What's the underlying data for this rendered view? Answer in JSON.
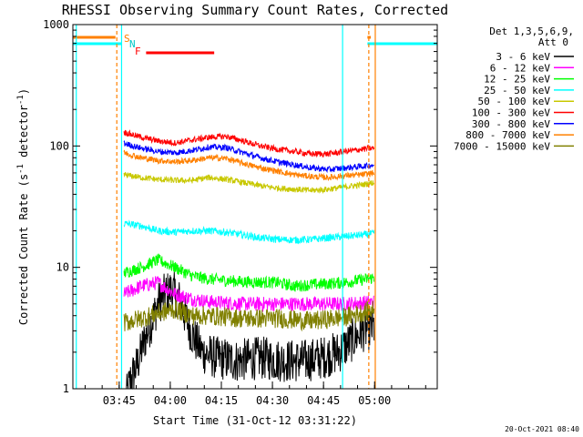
{
  "title": "RHESSI Observing Summary Count Rates, Corrected",
  "xlabel": "Start Time (31-Oct-12 03:31:22)",
  "ylabel": "Corrected Count Rate (s",
  "ylabel_sup1": "-1",
  "ylabel_mid": " detector",
  "ylabel_sup2": "-1",
  "ylabel_end": ")",
  "detector_info": {
    "line1": "Det 1,3,5,6,9,",
    "line2": "Att 0"
  },
  "flag_labels": {
    "s": "S",
    "n": "N",
    "f": "F"
  },
  "timestamp": "20-Oct-2021 08:40",
  "chart_data": {
    "type": "line",
    "xunit": "minutes since 03:31:22",
    "xlim": [
      0,
      107
    ],
    "ylim": [
      1,
      1000
    ],
    "yscale": "log",
    "x_ticks": [
      {
        "value": 13.6,
        "label": "03:45"
      },
      {
        "value": 28.6,
        "label": "04:00"
      },
      {
        "value": 43.6,
        "label": "04:15"
      },
      {
        "value": 58.6,
        "label": "04:30"
      },
      {
        "value": 73.6,
        "label": "04:45"
      },
      {
        "value": 88.6,
        "label": "05:00"
      }
    ],
    "y_ticks": [
      {
        "value": 1,
        "label": "1"
      },
      {
        "value": 10,
        "label": "10"
      },
      {
        "value": 100,
        "label": "100"
      },
      {
        "value": 1000,
        "label": "1000"
      }
    ],
    "series": [
      {
        "name": "3 - 6 keV",
        "color": "#000000",
        "noise": 0.18,
        "points": [
          [
            15.5,
            0.8
          ],
          [
            17,
            1.2
          ],
          [
            19,
            1.6
          ],
          [
            21,
            2.5
          ],
          [
            23,
            3.5
          ],
          [
            25,
            5
          ],
          [
            27,
            6
          ],
          [
            29,
            6.5
          ],
          [
            31,
            5.5
          ],
          [
            33,
            4
          ],
          [
            35,
            2.8
          ],
          [
            38,
            2
          ],
          [
            42,
            1.8
          ],
          [
            48,
            1.7
          ],
          [
            55,
            1.8
          ],
          [
            62,
            1.7
          ],
          [
            68,
            1.7
          ],
          [
            73,
            1.8
          ],
          [
            78,
            2
          ],
          [
            82,
            2.5
          ],
          [
            85,
            3
          ],
          [
            88.5,
            3.2
          ]
        ]
      },
      {
        "name": "6 - 12 keV",
        "color": "#ff00ff",
        "noise": 0.06,
        "points": [
          [
            15,
            6
          ],
          [
            20,
            7
          ],
          [
            25,
            7.5
          ],
          [
            30,
            6
          ],
          [
            35,
            5.5
          ],
          [
            40,
            5.2
          ],
          [
            50,
            5
          ],
          [
            60,
            5
          ],
          [
            70,
            5
          ],
          [
            80,
            5
          ],
          [
            88.5,
            5.2
          ]
        ]
      },
      {
        "name": "12 - 25 keV",
        "color": "#00ff00",
        "noise": 0.05,
        "points": [
          [
            15,
            9
          ],
          [
            20,
            10
          ],
          [
            25,
            11.5
          ],
          [
            30,
            10
          ],
          [
            35,
            8.5
          ],
          [
            40,
            8
          ],
          [
            50,
            7.6
          ],
          [
            60,
            7.5
          ],
          [
            65,
            7
          ],
          [
            70,
            7.2
          ],
          [
            80,
            7.5
          ],
          [
            88.5,
            8.2
          ]
        ]
      },
      {
        "name": "25 - 50 keV",
        "color": "#00ffff",
        "noise": 0.03,
        "points": [
          [
            15,
            23
          ],
          [
            20,
            22
          ],
          [
            25,
            20
          ],
          [
            30,
            19.5
          ],
          [
            35,
            20
          ],
          [
            40,
            20
          ],
          [
            45,
            19.5
          ],
          [
            50,
            18.5
          ],
          [
            55,
            17.5
          ],
          [
            60,
            17
          ],
          [
            65,
            16.8
          ],
          [
            70,
            17
          ],
          [
            75,
            17.5
          ],
          [
            80,
            18
          ],
          [
            85,
            18.5
          ],
          [
            88.5,
            19
          ]
        ]
      },
      {
        "name": "50 - 100 keV",
        "color": "#c8c800",
        "noise": 0.025,
        "points": [
          [
            15,
            58
          ],
          [
            20,
            55
          ],
          [
            25,
            53
          ],
          [
            30,
            52
          ],
          [
            35,
            52
          ],
          [
            40,
            55
          ],
          [
            45,
            53
          ],
          [
            50,
            50
          ],
          [
            55,
            47
          ],
          [
            60,
            45
          ],
          [
            65,
            44
          ],
          [
            70,
            43
          ],
          [
            75,
            44
          ],
          [
            80,
            46
          ],
          [
            85,
            48
          ],
          [
            88.5,
            50
          ]
        ]
      },
      {
        "name": "100 - 300 keV",
        "color": "#ff0000",
        "noise": 0.025,
        "points": [
          [
            15,
            130
          ],
          [
            20,
            118
          ],
          [
            25,
            110
          ],
          [
            30,
            106
          ],
          [
            35,
            112
          ],
          [
            40,
            118
          ],
          [
            45,
            120
          ],
          [
            50,
            110
          ],
          [
            55,
            100
          ],
          [
            60,
            94
          ],
          [
            65,
            90
          ],
          [
            70,
            86
          ],
          [
            75,
            86
          ],
          [
            80,
            90
          ],
          [
            85,
            94
          ],
          [
            88.5,
            96
          ]
        ]
      },
      {
        "name": "300 - 800 keV",
        "color": "#0000ff",
        "noise": 0.025,
        "points": [
          [
            15,
            105
          ],
          [
            20,
            96
          ],
          [
            25,
            90
          ],
          [
            30,
            88
          ],
          [
            35,
            92
          ],
          [
            40,
            98
          ],
          [
            45,
            97
          ],
          [
            50,
            88
          ],
          [
            55,
            80
          ],
          [
            60,
            74
          ],
          [
            65,
            70
          ],
          [
            70,
            66
          ],
          [
            75,
            64
          ],
          [
            80,
            66
          ],
          [
            85,
            68
          ],
          [
            88.5,
            70
          ]
        ]
      },
      {
        "name": "800 - 7000 keV",
        "color": "#ff8000",
        "noise": 0.025,
        "points": [
          [
            15,
            88
          ],
          [
            20,
            80
          ],
          [
            25,
            76
          ],
          [
            30,
            74
          ],
          [
            35,
            76
          ],
          [
            40,
            80
          ],
          [
            45,
            79
          ],
          [
            50,
            72
          ],
          [
            55,
            66
          ],
          [
            60,
            62
          ],
          [
            65,
            58
          ],
          [
            70,
            56
          ],
          [
            75,
            55
          ],
          [
            80,
            57
          ],
          [
            85,
            58
          ],
          [
            88.5,
            60
          ]
        ]
      },
      {
        "name": "7000 - 15000 keV",
        "color": "#808000",
        "noise": 0.08,
        "points": [
          [
            15,
            3.5
          ],
          [
            20,
            3.8
          ],
          [
            25,
            4.2
          ],
          [
            30,
            4.5
          ],
          [
            35,
            4
          ],
          [
            40,
            4
          ],
          [
            50,
            3.8
          ],
          [
            60,
            3.8
          ],
          [
            70,
            3.6
          ],
          [
            80,
            3.9
          ],
          [
            88.5,
            4.5
          ]
        ]
      }
    ]
  }
}
